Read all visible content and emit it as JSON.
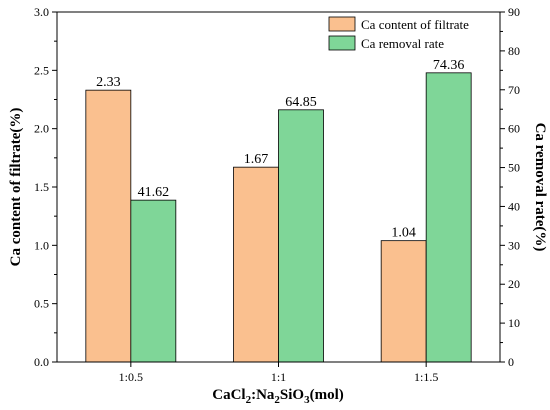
{
  "chart_data": {
    "type": "bar",
    "categories": [
      "1:0.5",
      "1:1",
      "1:1.5"
    ],
    "series": [
      {
        "name": "Ca content of filtrate",
        "axis": "left",
        "color": "#FAC08F",
        "values": [
          2.33,
          1.67,
          1.04
        ],
        "labels": [
          "2.33",
          "1.67",
          "1.04"
        ]
      },
      {
        "name": "Ca removal rate",
        "axis": "right",
        "color": "#7FD698",
        "values": [
          41.62,
          64.85,
          74.36
        ],
        "labels": [
          "41.62",
          "64.85",
          "74.36"
        ]
      }
    ],
    "xlabel": {
      "base": "CaCl",
      "sub1": "2",
      "mid": ":Na",
      "sub2": "2",
      "mid2": "SiO",
      "sub3": "3",
      "tail": "(mol)"
    },
    "ylabel_left": "Ca content of filtrate(%)",
    "ylabel_right": "Ca removal rate(%)",
    "ylim_left": [
      0,
      3.0
    ],
    "ylim_right": [
      0,
      90
    ],
    "yticks_left": [
      "0.0",
      "0.5",
      "1.0",
      "1.5",
      "2.0",
      "2.5",
      "3.0"
    ],
    "yticks_right": [
      "0",
      "10",
      "20",
      "30",
      "40",
      "50",
      "60",
      "70",
      "80",
      "90"
    ],
    "legend_position": "top-right",
    "grid": false
  }
}
